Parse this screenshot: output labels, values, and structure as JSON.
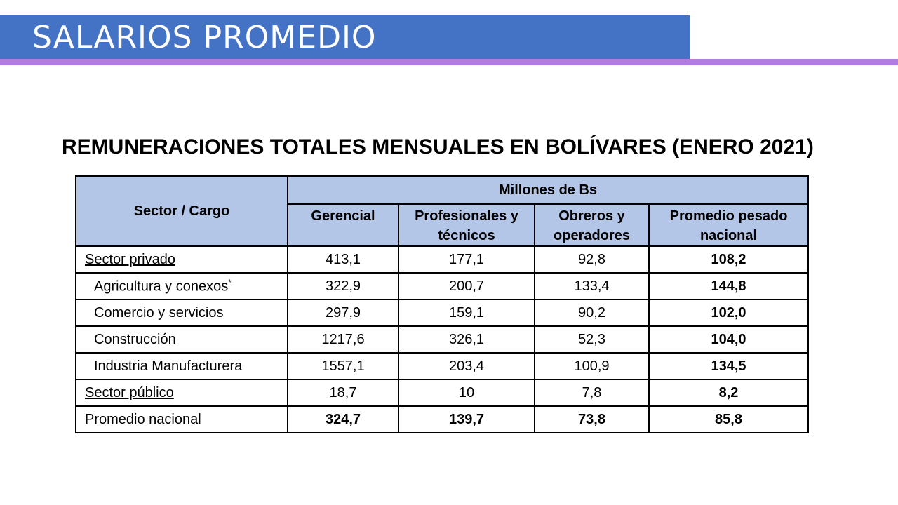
{
  "slide": {
    "title": "SALARIOS PROMEDIO",
    "subtitle": "REMUNERACIONES TOTALES MENSUALES EN BOLÍVARES (ENERO 2021)"
  },
  "table": {
    "header": {
      "sector_cargo": "Sector / Cargo",
      "group": "Millones de Bs",
      "columns": [
        "Gerencial",
        "Profesionales y técnicos",
        "Obreros y operadores",
        "Promedio pesado nacional"
      ]
    },
    "rows": [
      {
        "label": "Sector privado",
        "values": [
          "413,1",
          "177,1",
          "92,8",
          "108,2"
        ]
      },
      {
        "label": "Agricultura y conexos",
        "note": "*",
        "values": [
          "322,9",
          "200,7",
          "133,4",
          "144,8"
        ]
      },
      {
        "label": "Comercio y servicios",
        "values": [
          "297,9",
          "159,1",
          "90,2",
          "102,0"
        ]
      },
      {
        "label": "Construcción",
        "values": [
          "1217,6",
          "326,1",
          "52,3",
          "104,0"
        ]
      },
      {
        "label": "Industria Manufacturera",
        "values": [
          "1557,1",
          "203,4",
          "100,9",
          "134,5"
        ]
      },
      {
        "label": "Sector público",
        "values": [
          "18,7",
          "10",
          "7,8",
          "8,2"
        ]
      },
      {
        "label": "Promedio nacional",
        "values": [
          "324,7",
          "139,7",
          "73,8",
          "85,8"
        ]
      }
    ]
  }
}
